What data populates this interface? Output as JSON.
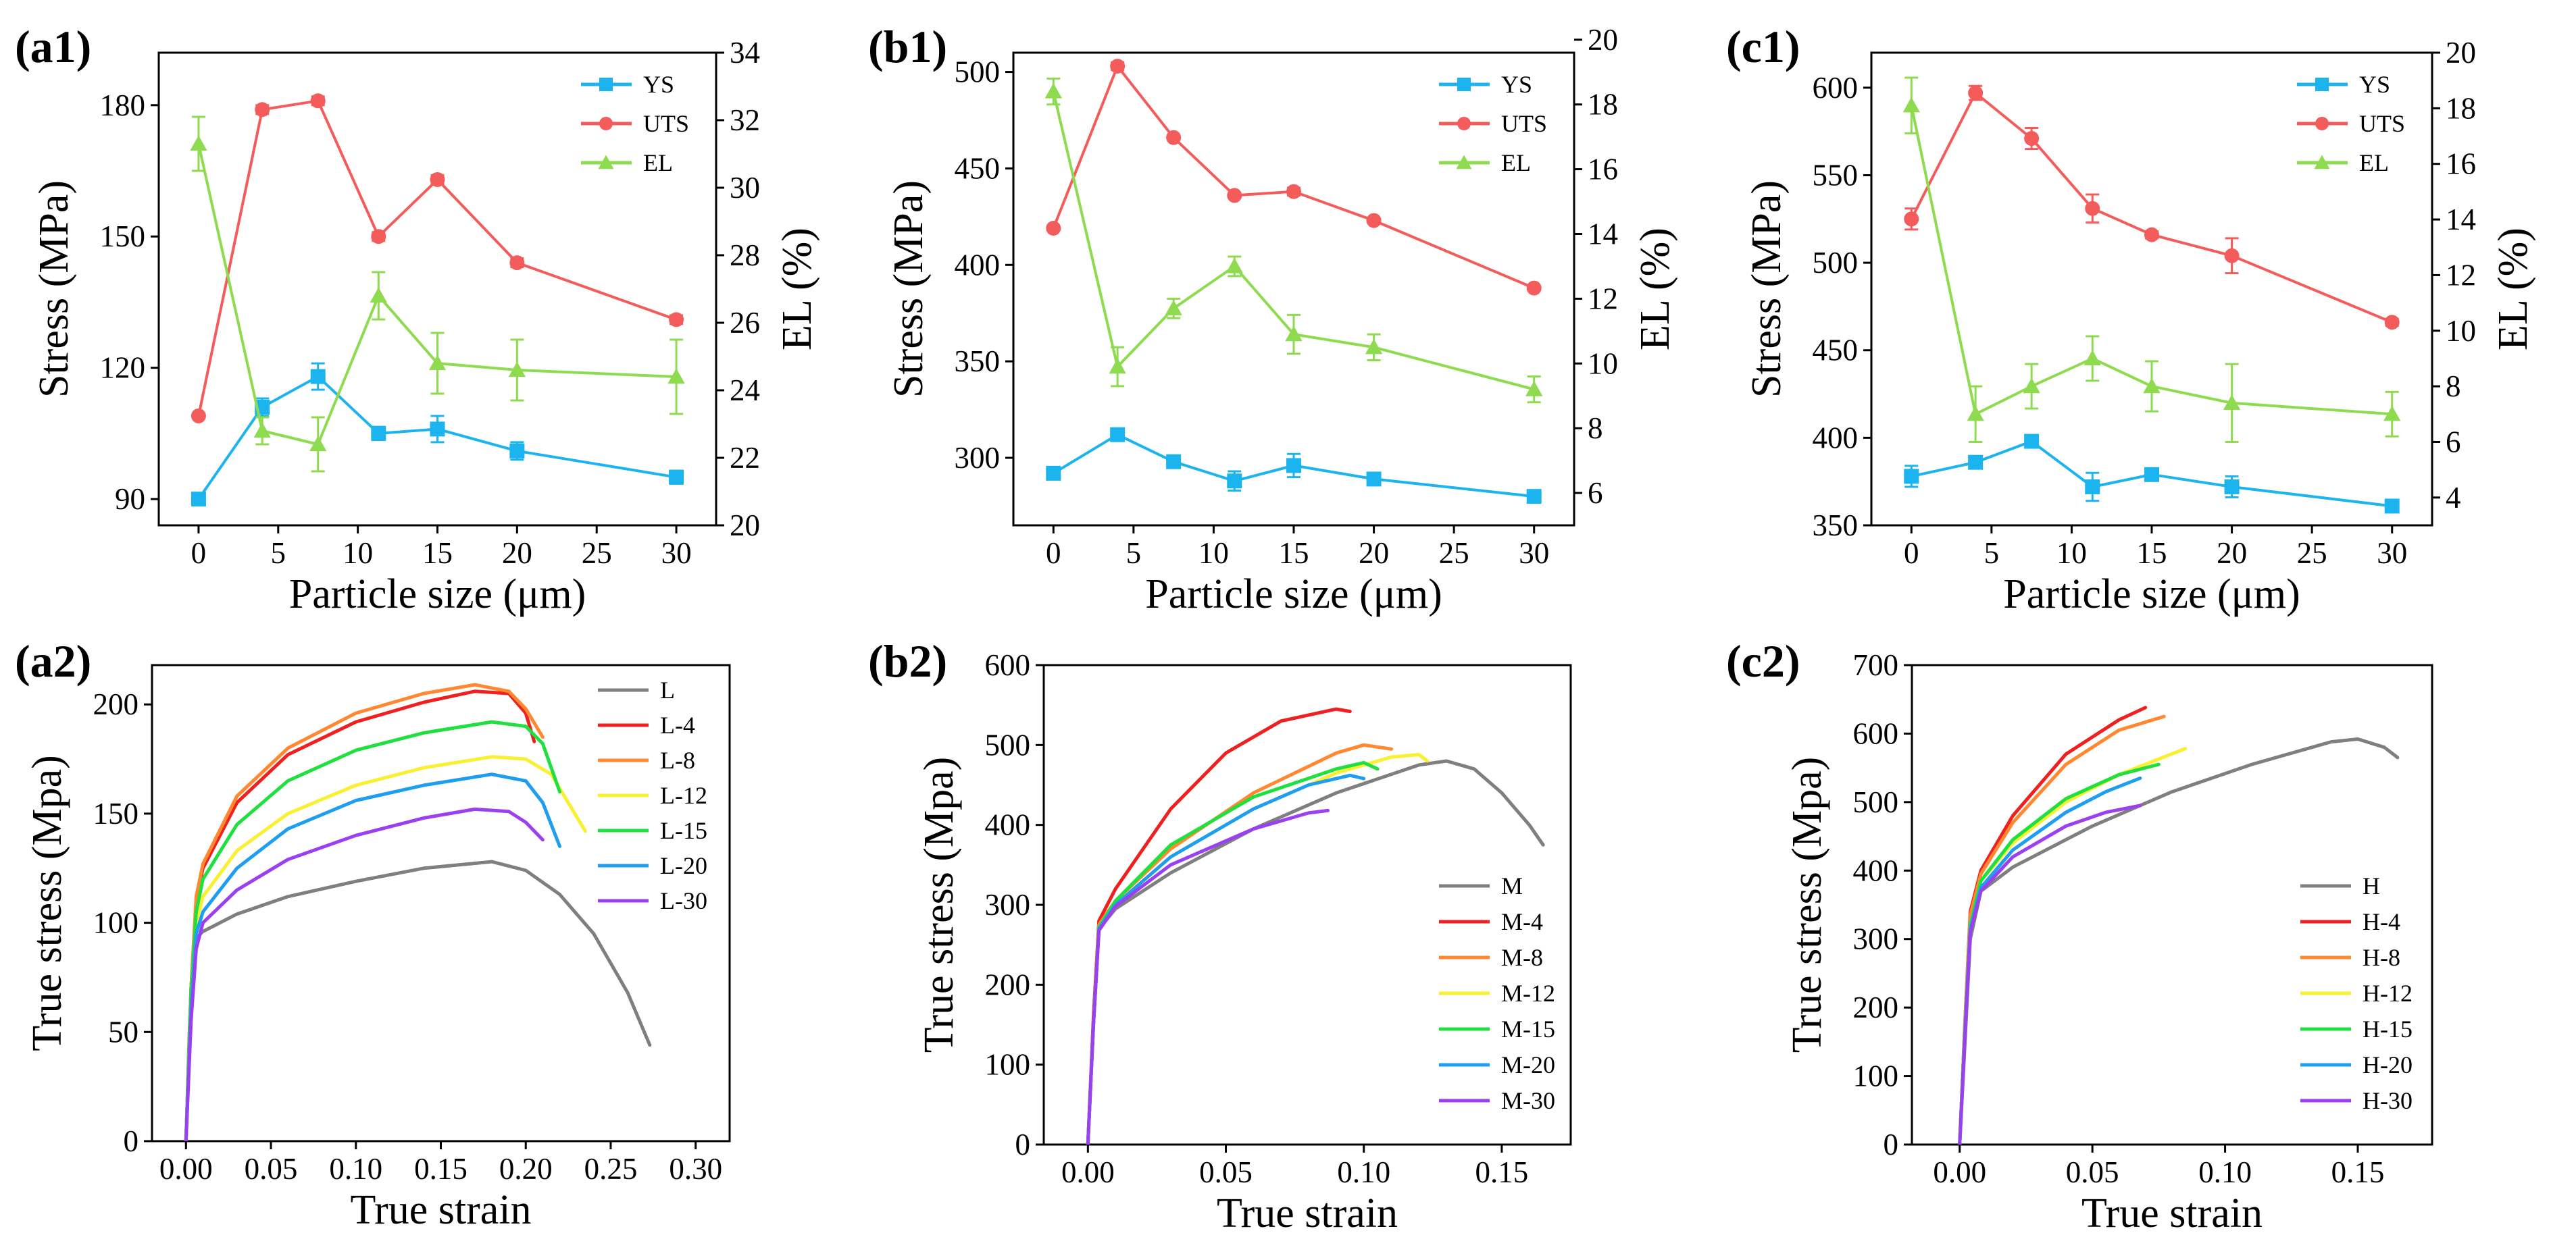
{
  "chart_data": [
    {
      "id": "a1",
      "label": "(a1)",
      "type": "line",
      "xlabel": "Particle size (μm)",
      "ylabel": "Stress (MPa)",
      "y2label": "EL (%)",
      "xlim": [
        -2.5,
        32.5
      ],
      "ylim": [
        84,
        192
      ],
      "y2lim": [
        20,
        34
      ],
      "xticks": [
        0,
        5,
        10,
        15,
        20,
        25,
        30
      ],
      "yticks": [
        90,
        120,
        150,
        180
      ],
      "y2ticks": [
        20,
        22,
        24,
        26,
        28,
        30,
        32,
        34
      ],
      "legend_position": "top-right",
      "series": [
        {
          "name": "YS",
          "axis": "left",
          "color": "#1cb4ee",
          "marker": "square",
          "x": [
            0,
            4,
            7.5,
            11.3,
            15,
            20,
            30
          ],
          "values": [
            90,
            111,
            118,
            105,
            106,
            101,
            95
          ],
          "err": [
            1,
            2,
            3,
            1.5,
            3,
            2,
            1.5
          ]
        },
        {
          "name": "UTS",
          "axis": "left",
          "color": "#f45b5b",
          "marker": "circle",
          "x": [
            0,
            4,
            7.5,
            11.3,
            15,
            20,
            30
          ],
          "values": [
            109,
            179,
            181,
            150,
            163,
            144,
            131
          ],
          "err": [
            0.5,
            1,
            1,
            1,
            1,
            1,
            1
          ]
        },
        {
          "name": "EL",
          "axis": "right",
          "color": "#8edb50",
          "marker": "triangle",
          "x": [
            0,
            4,
            7.5,
            11.3,
            15,
            20,
            30
          ],
          "values": [
            31.3,
            22.8,
            22.4,
            26.8,
            24.8,
            24.6,
            24.4
          ],
          "err": [
            0.8,
            0.4,
            0.8,
            0.7,
            0.9,
            0.9,
            1.1
          ]
        }
      ]
    },
    {
      "id": "b1",
      "label": "(b1)",
      "type": "line",
      "xlabel": "Particle size (μm)",
      "ylabel": "Stress (MPa)",
      "y2label": "EL (%)",
      "xlim": [
        -2.5,
        32.5
      ],
      "ylim": [
        265,
        510
      ],
      "y2lim": [
        5,
        19.6
      ],
      "xticks": [
        0,
        5,
        10,
        15,
        20,
        25,
        30
      ],
      "yticks": [
        300,
        350,
        400,
        450,
        500
      ],
      "y2ticks": [
        6,
        8,
        10,
        12,
        14,
        16,
        18,
        20
      ],
      "legend_position": "top-right",
      "series": [
        {
          "name": "YS",
          "axis": "left",
          "color": "#1cb4ee",
          "marker": "square",
          "x": [
            0,
            4,
            7.5,
            11.3,
            15,
            20,
            30
          ],
          "values": [
            292,
            312,
            298,
            288,
            296,
            289,
            280
          ],
          "err": [
            2,
            2,
            2,
            5,
            6,
            2,
            2
          ]
        },
        {
          "name": "UTS",
          "axis": "left",
          "color": "#f45b5b",
          "marker": "circle",
          "x": [
            0,
            4,
            7.5,
            11.3,
            15,
            20,
            30
          ],
          "values": [
            419,
            503,
            466,
            436,
            438,
            423,
            388
          ],
          "err": [
            1,
            2,
            1,
            1,
            2,
            1,
            1
          ]
        },
        {
          "name": "EL",
          "axis": "right",
          "color": "#8edb50",
          "marker": "triangle",
          "x": [
            0,
            4,
            7.5,
            11.3,
            15,
            20,
            30
          ],
          "values": [
            18.4,
            9.9,
            11.7,
            13.0,
            10.9,
            10.5,
            9.2
          ],
          "err": [
            0.4,
            0.6,
            0.3,
            0.3,
            0.6,
            0.4,
            0.4
          ]
        }
      ]
    },
    {
      "id": "c1",
      "label": "(c1)",
      "type": "line",
      "xlabel": "Particle size (μm)",
      "ylabel": "Stress (MPa)",
      "y2label": "EL (%)",
      "xlim": [
        -2.5,
        32.5
      ],
      "ylim": [
        350,
        620
      ],
      "y2lim": [
        3,
        20
      ],
      "xticks": [
        0,
        5,
        10,
        15,
        20,
        25,
        30
      ],
      "yticks": [
        350,
        400,
        450,
        500,
        550,
        600
      ],
      "y2ticks": [
        4,
        6,
        8,
        10,
        12,
        14,
        16,
        18,
        20
      ],
      "legend_position": "top-right",
      "series": [
        {
          "name": "YS",
          "axis": "left",
          "color": "#1cb4ee",
          "marker": "square",
          "x": [
            0,
            4,
            7.5,
            11.3,
            15,
            20,
            30
          ],
          "values": [
            378,
            386,
            398,
            372,
            379,
            372,
            361
          ],
          "err": [
            6,
            2,
            2,
            8,
            2,
            6,
            2
          ]
        },
        {
          "name": "UTS",
          "axis": "left",
          "color": "#f45b5b",
          "marker": "circle",
          "x": [
            0,
            4,
            7.5,
            11.3,
            15,
            20,
            30
          ],
          "values": [
            525,
            597,
            571,
            531,
            516,
            504,
            466
          ],
          "err": [
            6,
            4,
            6,
            8,
            2,
            10,
            2
          ]
        },
        {
          "name": "EL",
          "axis": "right",
          "color": "#8edb50",
          "marker": "triangle",
          "x": [
            0,
            4,
            7.5,
            11.3,
            15,
            20,
            30
          ],
          "values": [
            18.1,
            7.0,
            8.0,
            9.0,
            8.0,
            7.4,
            7.0
          ],
          "err": [
            1.0,
            1.0,
            0.8,
            0.8,
            0.9,
            1.4,
            0.8
          ]
        }
      ]
    },
    {
      "id": "a2",
      "label": "(a2)",
      "type": "line",
      "xlabel": "True strain",
      "ylabel": "True stress (Mpa)",
      "xlim": [
        -0.02,
        0.32
      ],
      "ylim": [
        0,
        218
      ],
      "xticks": [
        0.0,
        0.05,
        0.1,
        0.15,
        0.2,
        0.25,
        0.3
      ],
      "xtick_labels": [
        "0.00",
        "0.05",
        "0.10",
        "0.15",
        "0.20",
        "0.25",
        "0.30"
      ],
      "yticks": [
        0,
        50,
        100,
        150,
        200
      ],
      "legend_position": "top-right",
      "series": [
        {
          "name": "L",
          "color": "#7f7f7f",
          "x": [
            0,
            0.002,
            0.004,
            0.006,
            0.01,
            0.03,
            0.06,
            0.1,
            0.14,
            0.18,
            0.2,
            0.22,
            0.24,
            0.26,
            0.273
          ],
          "values": [
            0,
            50,
            85,
            93,
            96,
            104,
            112,
            119,
            125,
            128,
            124,
            113,
            95,
            68,
            44
          ]
        },
        {
          "name": "L-4",
          "color": "#ee2020",
          "x": [
            0,
            0.003,
            0.006,
            0.01,
            0.03,
            0.06,
            0.1,
            0.14,
            0.17,
            0.19,
            0.2,
            0.205
          ],
          "values": [
            0,
            70,
            110,
            125,
            155,
            177,
            192,
            201,
            206,
            205,
            196,
            183
          ]
        },
        {
          "name": "L-8",
          "color": "#ff8830",
          "x": [
            0,
            0.003,
            0.006,
            0.01,
            0.03,
            0.06,
            0.1,
            0.14,
            0.17,
            0.19,
            0.2,
            0.21
          ],
          "values": [
            0,
            70,
            112,
            127,
            158,
            180,
            196,
            205,
            209,
            206,
            198,
            185
          ]
        },
        {
          "name": "L-12",
          "color": "#f8f030",
          "x": [
            0,
            0.003,
            0.006,
            0.01,
            0.03,
            0.06,
            0.1,
            0.14,
            0.18,
            0.2,
            0.215,
            0.225,
            0.235
          ],
          "values": [
            0,
            65,
            100,
            112,
            133,
            150,
            163,
            171,
            176,
            175,
            168,
            155,
            142
          ]
        },
        {
          "name": "L-15",
          "color": "#20e040",
          "x": [
            0,
            0.003,
            0.006,
            0.01,
            0.03,
            0.06,
            0.1,
            0.14,
            0.18,
            0.2,
            0.21,
            0.22
          ],
          "values": [
            0,
            68,
            105,
            120,
            145,
            165,
            179,
            187,
            192,
            190,
            182,
            160
          ]
        },
        {
          "name": "L-20",
          "color": "#1e9ef0",
          "x": [
            0,
            0.003,
            0.006,
            0.01,
            0.03,
            0.06,
            0.1,
            0.14,
            0.18,
            0.2,
            0.21,
            0.22
          ],
          "values": [
            0,
            60,
            95,
            105,
            125,
            143,
            156,
            163,
            168,
            165,
            155,
            135
          ]
        },
        {
          "name": "L-30",
          "color": "#9a40f0",
          "x": [
            0,
            0.003,
            0.006,
            0.01,
            0.03,
            0.06,
            0.1,
            0.14,
            0.17,
            0.19,
            0.2,
            0.21
          ],
          "values": [
            0,
            55,
            88,
            100,
            115,
            129,
            140,
            148,
            152,
            151,
            146,
            138
          ]
        }
      ]
    },
    {
      "id": "b2",
      "label": "(b2)",
      "type": "line",
      "xlabel": "True strain",
      "ylabel": "True stress (Mpa)",
      "xlim": [
        -0.016,
        0.175
      ],
      "ylim": [
        0,
        600
      ],
      "xticks": [
        0.0,
        0.05,
        0.1,
        0.15
      ],
      "xtick_labels": [
        "0.00",
        "0.05",
        "0.10",
        "0.15"
      ],
      "yticks": [
        0,
        100,
        200,
        300,
        400,
        500,
        600
      ],
      "legend_position": "bottom-right",
      "series": [
        {
          "name": "M",
          "color": "#7f7f7f",
          "x": [
            0,
            0.002,
            0.004,
            0.01,
            0.03,
            0.06,
            0.09,
            0.12,
            0.13,
            0.14,
            0.15,
            0.16,
            0.165
          ],
          "values": [
            0,
            150,
            270,
            295,
            340,
            395,
            440,
            475,
            480,
            470,
            440,
            400,
            375
          ]
        },
        {
          "name": "M-4",
          "color": "#ee2020",
          "x": [
            0,
            0.002,
            0.004,
            0.01,
            0.03,
            0.05,
            0.07,
            0.09,
            0.095
          ],
          "values": [
            0,
            160,
            280,
            320,
            420,
            490,
            530,
            545,
            542
          ]
        },
        {
          "name": "M-8",
          "color": "#ff8830",
          "x": [
            0,
            0.002,
            0.004,
            0.01,
            0.03,
            0.06,
            0.09,
            0.1,
            0.11
          ],
          "values": [
            0,
            150,
            275,
            305,
            370,
            440,
            490,
            500,
            495
          ]
        },
        {
          "name": "M-12",
          "color": "#f8f030",
          "x": [
            0,
            0.002,
            0.004,
            0.01,
            0.03,
            0.06,
            0.09,
            0.11,
            0.12,
            0.123
          ],
          "values": [
            0,
            150,
            272,
            300,
            360,
            420,
            465,
            485,
            488,
            480
          ]
        },
        {
          "name": "M-15",
          "color": "#20e040",
          "x": [
            0,
            0.002,
            0.004,
            0.01,
            0.03,
            0.06,
            0.09,
            0.1,
            0.105
          ],
          "values": [
            0,
            150,
            272,
            305,
            375,
            435,
            470,
            478,
            470
          ]
        },
        {
          "name": "M-20",
          "color": "#1e9ef0",
          "x": [
            0,
            0.002,
            0.004,
            0.01,
            0.03,
            0.06,
            0.08,
            0.095,
            0.1
          ],
          "values": [
            0,
            150,
            270,
            300,
            360,
            420,
            450,
            462,
            458
          ]
        },
        {
          "name": "M-30",
          "color": "#9a40f0",
          "x": [
            0,
            0.002,
            0.004,
            0.01,
            0.03,
            0.06,
            0.08,
            0.087
          ],
          "values": [
            0,
            150,
            268,
            298,
            350,
            395,
            415,
            418
          ]
        }
      ]
    },
    {
      "id": "c2",
      "label": "(c2)",
      "type": "line",
      "xlabel": "True strain",
      "ylabel": "True stress (Mpa)",
      "xlim": [
        -0.018,
        0.178
      ],
      "ylim": [
        0,
        700
      ],
      "xticks": [
        0.0,
        0.05,
        0.1,
        0.15
      ],
      "xtick_labels": [
        "0.00",
        "0.05",
        "0.10",
        "0.15"
      ],
      "yticks": [
        0,
        100,
        200,
        300,
        400,
        500,
        600,
        700
      ],
      "legend_position": "bottom-right",
      "series": [
        {
          "name": "H",
          "color": "#7f7f7f",
          "x": [
            0,
            0.002,
            0.004,
            0.008,
            0.02,
            0.05,
            0.08,
            0.11,
            0.14,
            0.15,
            0.16,
            0.165
          ],
          "values": [
            0,
            150,
            300,
            370,
            405,
            465,
            515,
            555,
            588,
            592,
            580,
            565
          ]
        },
        {
          "name": "H-4",
          "color": "#ee2020",
          "x": [
            0,
            0.002,
            0.004,
            0.008,
            0.02,
            0.04,
            0.06,
            0.07
          ],
          "values": [
            0,
            180,
            340,
            400,
            480,
            570,
            620,
            638
          ]
        },
        {
          "name": "H-8",
          "color": "#ff8830",
          "x": [
            0,
            0.002,
            0.004,
            0.008,
            0.02,
            0.04,
            0.06,
            0.077
          ],
          "values": [
            0,
            180,
            335,
            395,
            470,
            555,
            605,
            625
          ]
        },
        {
          "name": "H-12",
          "color": "#f8f030",
          "x": [
            0,
            0.002,
            0.004,
            0.008,
            0.02,
            0.04,
            0.06,
            0.085
          ],
          "values": [
            0,
            170,
            320,
            385,
            440,
            500,
            540,
            578
          ]
        },
        {
          "name": "H-15",
          "color": "#20e040",
          "x": [
            0,
            0.002,
            0.004,
            0.008,
            0.02,
            0.04,
            0.06,
            0.075
          ],
          "values": [
            0,
            170,
            320,
            385,
            445,
            505,
            540,
            555
          ]
        },
        {
          "name": "H-20",
          "color": "#1e9ef0",
          "x": [
            0,
            0.002,
            0.004,
            0.008,
            0.02,
            0.04,
            0.055,
            0.068
          ],
          "values": [
            0,
            165,
            315,
            375,
            430,
            485,
            515,
            535
          ]
        },
        {
          "name": "H-30",
          "color": "#9a40f0",
          "x": [
            0,
            0.002,
            0.004,
            0.008,
            0.02,
            0.04,
            0.055,
            0.068
          ],
          "values": [
            0,
            160,
            310,
            370,
            420,
            465,
            485,
            495
          ]
        }
      ]
    }
  ]
}
